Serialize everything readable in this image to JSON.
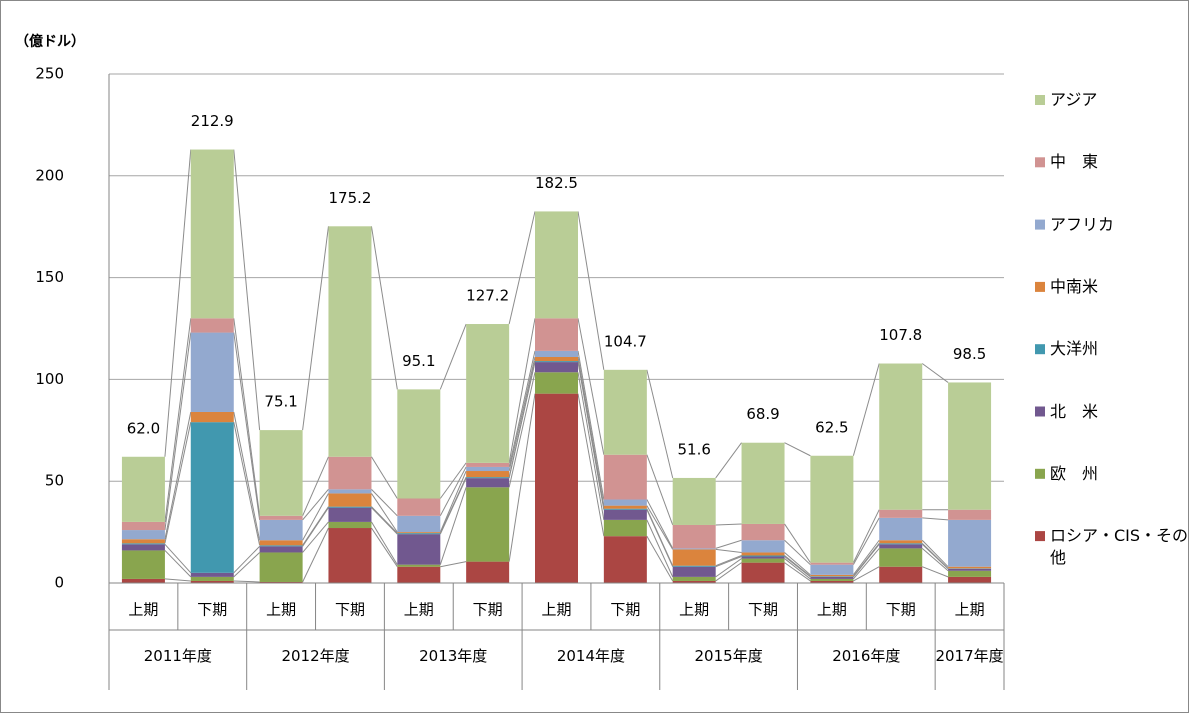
{
  "chart_data": {
    "type": "stacked_bar",
    "y_axis_label": "（億ドル）",
    "groups": [
      {
        "label": "2011年度",
        "categories": [
          "上期",
          "下期"
        ]
      },
      {
        "label": "2012年度",
        "categories": [
          "上期",
          "下期"
        ]
      },
      {
        "label": "2013年度",
        "categories": [
          "上期",
          "下期"
        ]
      },
      {
        "label": "2014年度",
        "categories": [
          "上期",
          "下期"
        ]
      },
      {
        "label": "2015年度",
        "categories": [
          "上期",
          "下期"
        ]
      },
      {
        "label": "2016年度",
        "categories": [
          "上期",
          "下期"
        ]
      },
      {
        "label": "2017年度",
        "categories": [
          "上期"
        ]
      }
    ],
    "ylim": [
      0,
      250
    ],
    "yticks": [
      0,
      50,
      100,
      150,
      200,
      250
    ],
    "grid": true,
    "series_lines": true,
    "legend": "right",
    "series": [
      {
        "name": "ロシア・CIS・その他",
        "color": "#ab4643",
        "values": [
          2,
          1,
          0.5,
          27,
          8,
          10.5,
          93,
          23,
          1,
          10,
          1,
          8,
          3
        ]
      },
      {
        "name": "欧　州",
        "color": "#89a54e",
        "values": [
          14,
          2,
          14.5,
          3,
          1,
          36.5,
          10.5,
          8,
          2,
          2,
          1,
          9,
          3
        ]
      },
      {
        "name": "北　米",
        "color": "#71588f",
        "values": [
          3,
          2,
          3,
          7,
          15,
          4.5,
          5,
          5,
          5,
          1,
          1,
          2,
          1
        ]
      },
      {
        "name": "大洋州",
        "color": "#4198af",
        "values": [
          0.5,
          74,
          0.5,
          0.5,
          0.5,
          0.5,
          0.5,
          0.5,
          0.5,
          0.5,
          0.3,
          0.5,
          0.2
        ]
      },
      {
        "name": "中南米",
        "color": "#db843d",
        "values": [
          2,
          5,
          2.5,
          6.5,
          0.5,
          3,
          2,
          1.5,
          8,
          1.5,
          0.7,
          1.5,
          0.8
        ]
      },
      {
        "name": "アフリカ",
        "color": "#93a9cf",
        "values": [
          4.5,
          39,
          10,
          2,
          8,
          2,
          3,
          3,
          0.5,
          6,
          5,
          11,
          23
        ]
      },
      {
        "name": "中　東",
        "color": "#d19392",
        "values": [
          4,
          7,
          2,
          16,
          8.5,
          2,
          16,
          22,
          11.5,
          8,
          1,
          4,
          5
        ]
      },
      {
        "name": "アジア",
        "color": "#b9cd96",
        "values": [
          32,
          82.9,
          42.1,
          113.2,
          53.6,
          68.2,
          52.5,
          41.7,
          23.1,
          39.9,
          52.5,
          71.8,
          62.5
        ]
      }
    ],
    "totals": {
      "values": [
        62.0,
        212.9,
        75.1,
        175.2,
        95.1,
        127.2,
        182.5,
        104.7,
        51.6,
        68.9,
        62.5,
        107.8,
        98.5
      ],
      "value_labels": [
        "62.0",
        "212.9",
        "75.1",
        "175.2",
        "95.1",
        "127.2",
        "182.5",
        "104.7",
        "51.6",
        "68.9",
        "62.5",
        "107.8",
        "98.5"
      ]
    }
  }
}
